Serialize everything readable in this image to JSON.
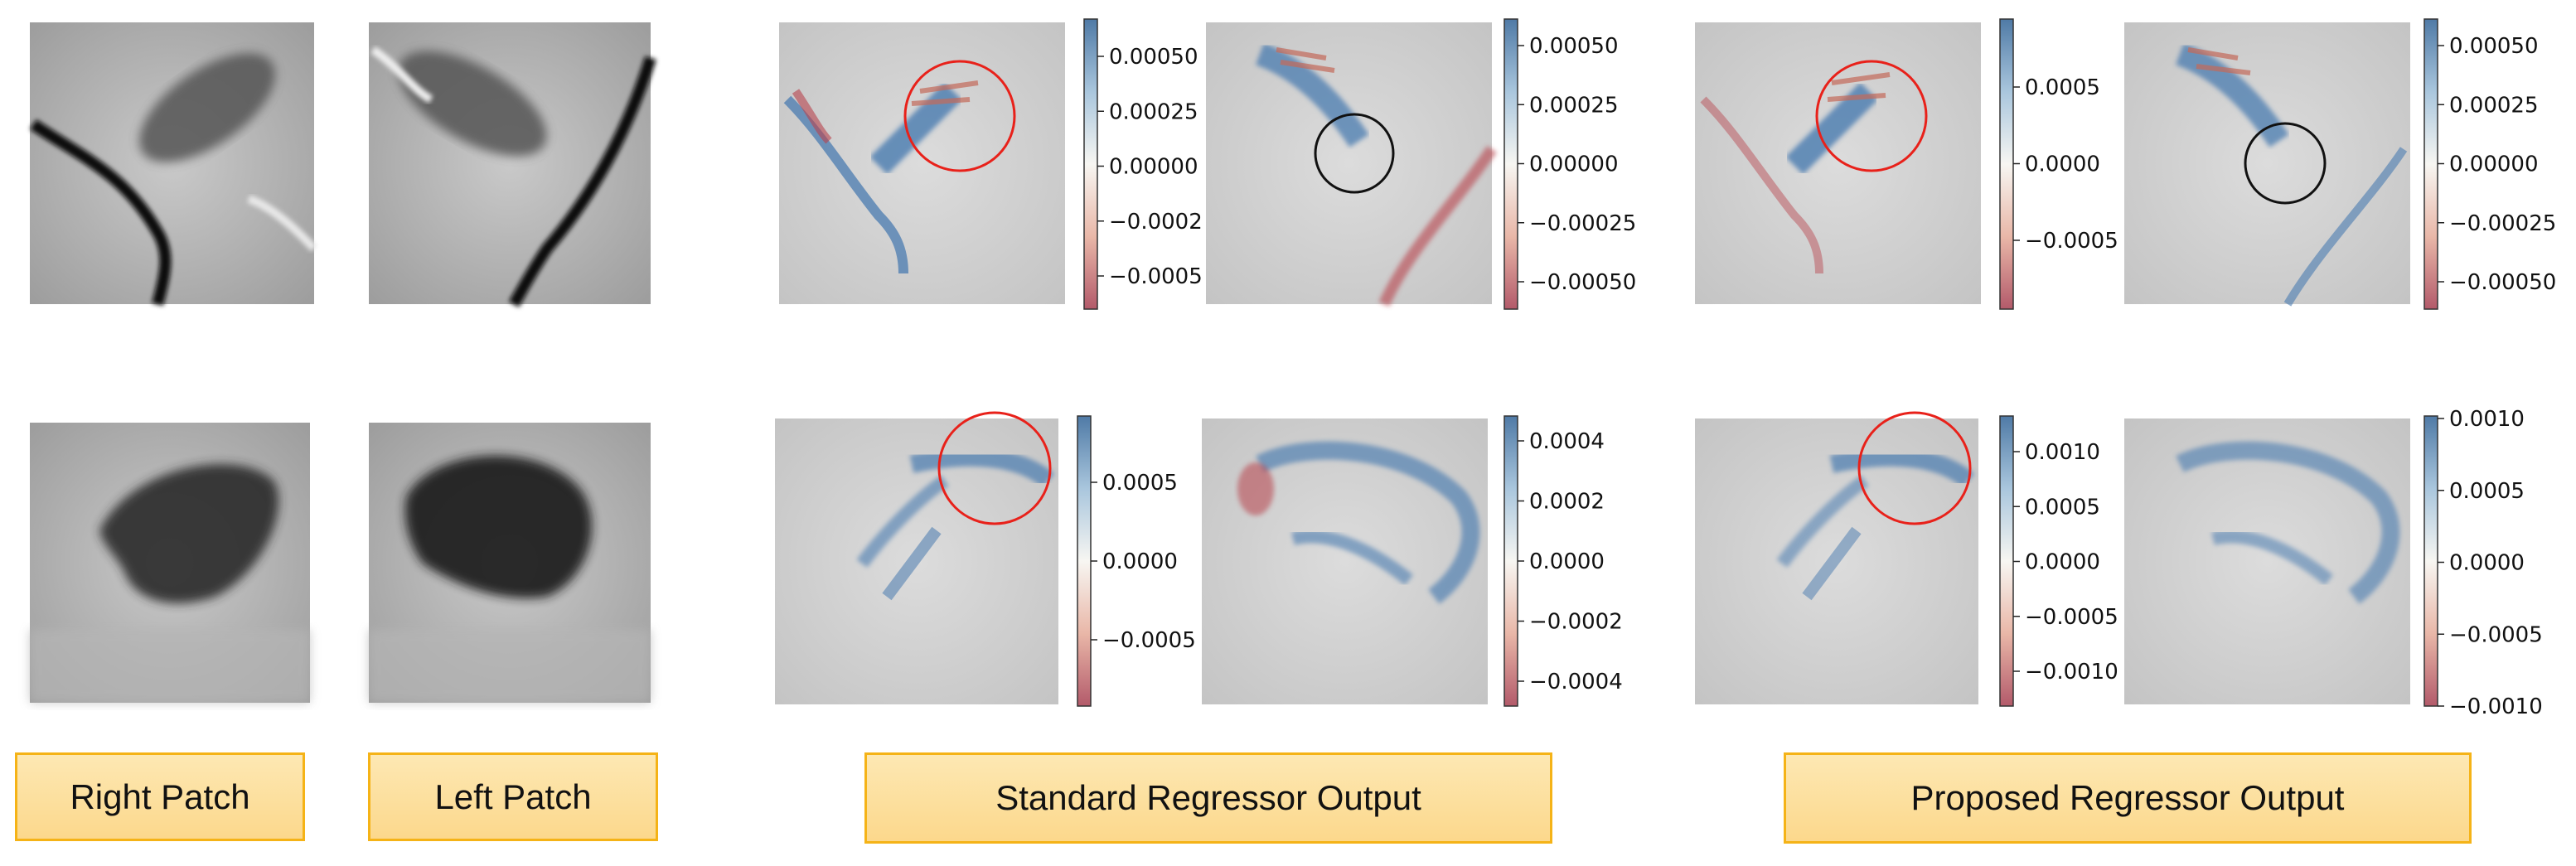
{
  "captions": {
    "right_patch": "Right Patch",
    "left_patch": "Left Patch",
    "standard": "Standard Regressor Output",
    "proposed": "Proposed Regressor Output"
  },
  "colorbars": {
    "std_top_1": [
      "0.00050",
      "0.00025",
      "0.00000",
      "−0.0002",
      "−0.0005"
    ],
    "std_top_2": [
      "0.00050",
      "0.00025",
      "0.00000",
      "−0.00025",
      "−0.00050"
    ],
    "prop_top_1": [
      "0.0005",
      "0.0000",
      "−0.0005"
    ],
    "prop_top_2": [
      "0.00050",
      "0.00025",
      "0.00000",
      "−0.00025",
      "−0.00050"
    ],
    "std_bot_1": [
      "0.0005",
      "0.0000",
      "−0.0005"
    ],
    "std_bot_2": [
      "0.0004",
      "0.0002",
      "0.0000",
      "−0.0002",
      "−0.0004"
    ],
    "prop_bot_1": [
      "0.0010",
      "0.0005",
      "0.0000",
      "−0.0005",
      "−0.0010"
    ],
    "prop_bot_2": [
      "0.0010",
      "0.0005",
      "0.0000",
      "−0.0005",
      "−0.0010"
    ]
  },
  "colors": {
    "caption_fill": "#fcd88c",
    "caption_border": "#f5b317",
    "positive": "#4a7bb0",
    "negative": "#b8424c",
    "highlight_circle": "#e8211a",
    "miss_circle": "#111111"
  }
}
